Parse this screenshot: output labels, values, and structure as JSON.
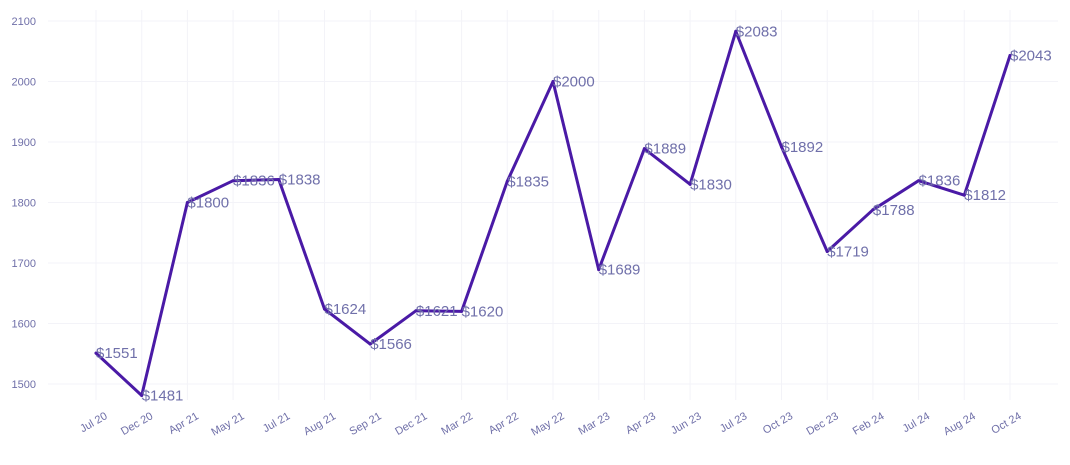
{
  "chart_data": {
    "type": "line",
    "title": "",
    "xlabel": "",
    "ylabel": "",
    "ylim": [
      1450,
      2110
    ],
    "yticks": [
      1500,
      1600,
      1700,
      1800,
      1900,
      2000,
      2100
    ],
    "grid": true,
    "line_color": "#4a1aa6",
    "categories": [
      "Jul 20",
      "Dec 20",
      "Apr 21",
      "May 21",
      "Jul 21",
      "Aug 21",
      "Sep 21",
      "Dec 21",
      "Mar 22",
      "Apr 22",
      "May 22",
      "Mar 23",
      "Apr 23",
      "Jun 23",
      "Jul 23",
      "Oct 23",
      "Dec 23",
      "Feb 24",
      "Jul 24",
      "Aug 24",
      "Oct 24"
    ],
    "values": [
      1551,
      1481,
      1800,
      1836,
      1838,
      1624,
      1566,
      1621,
      1620,
      1835,
      2000,
      1689,
      1889,
      1830,
      2083,
      1892,
      1719,
      1788,
      1836,
      1812,
      2043
    ],
    "data_labels": [
      "$1551",
      "$1481",
      "$1800",
      "$1836",
      "$1838",
      "$1624",
      "$1566",
      "$1621",
      "$1620",
      "$1835",
      "$2000",
      "$1689",
      "$1889",
      "$1830",
      "$2083",
      "$1892",
      "$1719",
      "$1788",
      "$1836",
      "$1812",
      "$2043"
    ]
  }
}
